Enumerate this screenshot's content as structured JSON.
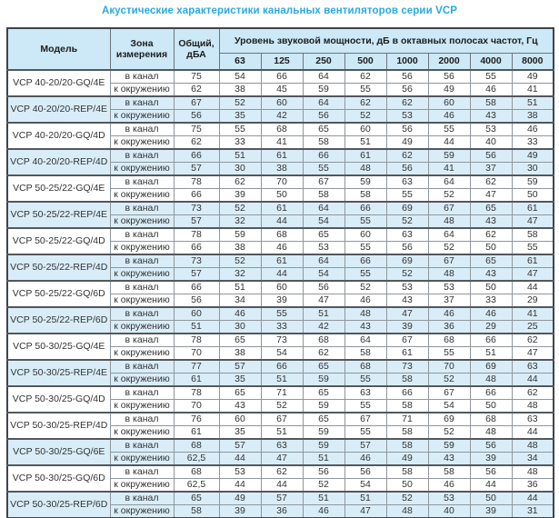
{
  "title": "Акустические характеристики канальных вентиляторов  серии VCP",
  "colors": {
    "title": "#29a9e0",
    "header_bg": "#cde8f6",
    "stripe_bg": "#d9edf8",
    "border_dark": "#3f4449"
  },
  "table": {
    "headers": {
      "model": "Модель",
      "zone": "Зона измерения",
      "total": "Общий, дБА",
      "spl_group": "Уровень звуковой мощности, дБ в октавных полосах частот, Гц"
    },
    "freq_labels": [
      "63",
      "125",
      "250",
      "500",
      "1000",
      "2000",
      "4000",
      "8000"
    ],
    "zone_labels": {
      "duct": "в канал",
      "ambient": "к окружению"
    },
    "groups": [
      {
        "model": "VCP 40-20/20-GQ/4E",
        "shaded": false,
        "rows": [
          {
            "zone": "в канал",
            "total": "75",
            "levels": [
              54,
              66,
              64,
              62,
              56,
              56,
              55,
              49
            ]
          },
          {
            "zone": "к окружению",
            "total": "62",
            "levels": [
              38,
              45,
              59,
              55,
              56,
              49,
              46,
              41
            ]
          }
        ]
      },
      {
        "model": "VCP 40-20/20-REP/4E",
        "shaded": true,
        "rows": [
          {
            "zone": "в канал",
            "total": "67",
            "levels": [
              52,
              60,
              64,
              62,
              62,
              60,
              58,
              51
            ]
          },
          {
            "zone": "к окружению",
            "total": "56",
            "levels": [
              35,
              42,
              56,
              52,
              53,
              46,
              43,
              38
            ]
          }
        ]
      },
      {
        "model": "VCP 40-20/20-GQ/4D",
        "shaded": false,
        "rows": [
          {
            "zone": "в канал",
            "total": "75",
            "levels": [
              55,
              68,
              65,
              60,
              56,
              55,
              53,
              46
            ]
          },
          {
            "zone": "к окружению",
            "total": "62",
            "levels": [
              33,
              41,
              58,
              51,
              49,
              44,
              40,
              33
            ]
          }
        ]
      },
      {
        "model": "VCP 40-20/20-REP/4D",
        "shaded": true,
        "rows": [
          {
            "zone": "в канал",
            "total": "66",
            "levels": [
              51,
              61,
              66,
              61,
              62,
              59,
              56,
              49
            ]
          },
          {
            "zone": "к окружению",
            "total": "57",
            "levels": [
              30,
              38,
              55,
              48,
              56,
              41,
              37,
              30
            ]
          }
        ]
      },
      {
        "model": "VCP 50-25/22-GQ/4E",
        "shaded": false,
        "rows": [
          {
            "zone": "в канал",
            "total": "78",
            "levels": [
              62,
              70,
              67,
              59,
              63,
              64,
              62,
              59
            ]
          },
          {
            "zone": "к окружению",
            "total": "66",
            "levels": [
              39,
              50,
              58,
              58,
              55,
              52,
              47,
              50
            ]
          }
        ]
      },
      {
        "model": "VCP 50-25/22-REP/4E",
        "shaded": true,
        "rows": [
          {
            "zone": "в канал",
            "total": "73",
            "levels": [
              52,
              61,
              64,
              66,
              69,
              67,
              65,
              61
            ]
          },
          {
            "zone": "к окружению",
            "total": "57",
            "levels": [
              32,
              44,
              54,
              55,
              52,
              48,
              43,
              47
            ]
          }
        ]
      },
      {
        "model": "VCP 50-25/22-GQ/4D",
        "shaded": false,
        "rows": [
          {
            "zone": "в канал",
            "total": "78",
            "levels": [
              59,
              68,
              65,
              60,
              63,
              64,
              62,
              58
            ]
          },
          {
            "zone": "к окружению",
            "total": "66",
            "levels": [
              38,
              46,
              53,
              55,
              56,
              52,
              50,
              55
            ]
          }
        ]
      },
      {
        "model": "VCP 50-25/22-REP/4D",
        "shaded": true,
        "rows": [
          {
            "zone": "в канал",
            "total": "73",
            "levels": [
              52,
              61,
              64,
              66,
              69,
              67,
              65,
              61
            ]
          },
          {
            "zone": "к окружению",
            "total": "57",
            "levels": [
              32,
              44,
              54,
              55,
              52,
              48,
              43,
              47
            ]
          }
        ]
      },
      {
        "model": "VCP 50-25/22-GQ/6D",
        "shaded": false,
        "rows": [
          {
            "zone": "в канал",
            "total": "66",
            "levels": [
              51,
              60,
              56,
              52,
              53,
              53,
              50,
              44
            ]
          },
          {
            "zone": "к окружению",
            "total": "56",
            "levels": [
              34,
              39,
              47,
              46,
              43,
              37,
              33,
              29
            ]
          }
        ]
      },
      {
        "model": "VCP 50-25/22-REP/6D",
        "shaded": true,
        "rows": [
          {
            "zone": "в канал",
            "total": "60",
            "levels": [
              46,
              55,
              51,
              48,
              47,
              46,
              46,
              41
            ]
          },
          {
            "zone": "к окружению",
            "total": "51",
            "levels": [
              30,
              33,
              42,
              43,
              39,
              36,
              29,
              25
            ]
          }
        ]
      },
      {
        "model": "VCP 50-30/25-GQ/4E",
        "shaded": false,
        "rows": [
          {
            "zone": "в канал",
            "total": "78",
            "levels": [
              65,
              73,
              68,
              64,
              67,
              68,
              66,
              62
            ]
          },
          {
            "zone": "к окружению",
            "total": "70",
            "levels": [
              38,
              54,
              62,
              58,
              61,
              55,
              51,
              47
            ]
          }
        ]
      },
      {
        "model": "VCP 50-30/25-REP/4E",
        "shaded": true,
        "rows": [
          {
            "zone": "в канал",
            "total": "77",
            "levels": [
              57,
              66,
              65,
              68,
              73,
              70,
              69,
              63
            ]
          },
          {
            "zone": "к окружению",
            "total": "61",
            "levels": [
              35,
              51,
              59,
              55,
              58,
              52,
              48,
              44
            ]
          }
        ]
      },
      {
        "model": "VCP 50-30/25-GQ/4D",
        "shaded": false,
        "rows": [
          {
            "zone": "в канал",
            "total": "78",
            "levels": [
              65,
              71,
              65,
              63,
              66,
              67,
              66,
              62
            ]
          },
          {
            "zone": "к окружению",
            "total": "70",
            "levels": [
              43,
              52,
              59,
              55,
              58,
              54,
              50,
              48
            ]
          }
        ]
      },
      {
        "model": "VCP 50-30/25-REP/4D",
        "shaded": false,
        "rows": [
          {
            "zone": "в канал",
            "total": "76",
            "levels": [
              60,
              67,
              65,
              67,
              71,
              69,
              68,
              63
            ]
          },
          {
            "zone": "к окружению",
            "total": "61",
            "levels": [
              35,
              51,
              59,
              55,
              58,
              52,
              48,
              44
            ]
          }
        ]
      },
      {
        "model": "VCP 50-30/25-GQ/6E",
        "shaded": true,
        "rows": [
          {
            "zone": "в канал",
            "total": "68",
            "levels": [
              57,
              63,
              59,
              57,
              58,
              59,
              56,
              48
            ]
          },
          {
            "zone": "к окружению",
            "total": "62,5",
            "levels": [
              44,
              47,
              51,
              46,
              49,
              43,
              39,
              34
            ]
          }
        ]
      },
      {
        "model": "VCP 50-30/25-GQ/6D",
        "shaded": false,
        "rows": [
          {
            "zone": "в канал",
            "total": "68",
            "levels": [
              53,
              62,
              56,
              56,
              58,
              58,
              56,
              48
            ]
          },
          {
            "zone": "к окружению",
            "total": "62,5",
            "levels": [
              44,
              44,
              52,
              54,
              50,
              46,
              44,
              36
            ]
          }
        ]
      },
      {
        "model": "VCP 50-30/25-REP/6D",
        "shaded": true,
        "rows": [
          {
            "zone": "в канал",
            "total": "65",
            "levels": [
              49,
              57,
              51,
              51,
              52,
              53,
              50,
              44
            ]
          },
          {
            "zone": "к окружению",
            "total": "58",
            "levels": [
              39,
              36,
              46,
              47,
              48,
              40,
              39,
              31
            ]
          }
        ]
      }
    ]
  }
}
